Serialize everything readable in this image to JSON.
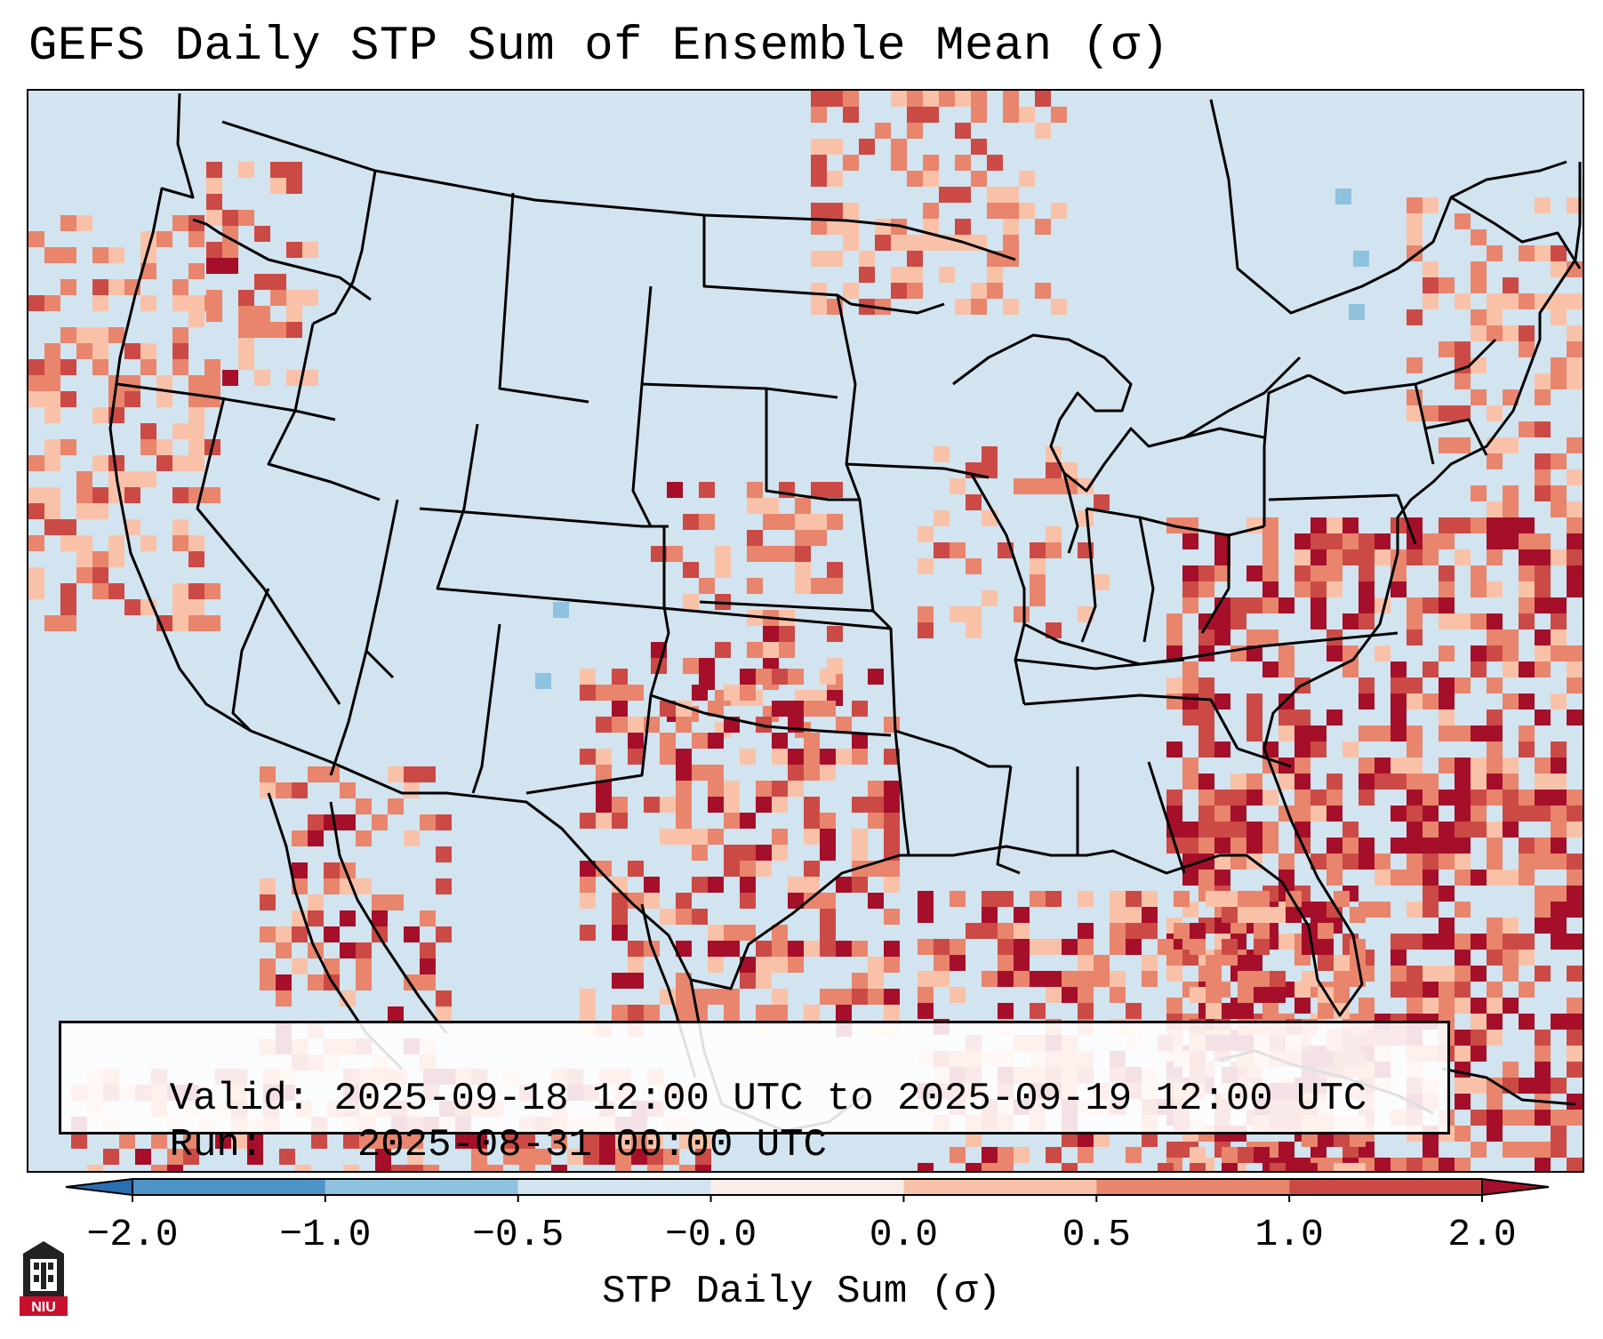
{
  "title": "GEFS Daily STP Sum of Ensemble Mean (σ)",
  "info": {
    "valid_label": "Valid:",
    "valid_value": "2025-09-18 12:00 UTC to 2025-09-19 12:00 UTC",
    "run_label": "Run:",
    "run_value": "2025-08-31 00:00 UTC"
  },
  "colorbar": {
    "label": "STP Daily Sum (σ)",
    "ticks": [
      "−2.0",
      "−1.0",
      "−0.5",
      "−0.0",
      "0.0",
      "0.5",
      "1.0",
      "2.0"
    ],
    "extend": "both",
    "colors": [
      "#2b6fb3",
      "#4d94c8",
      "#8fc2de",
      "#d2e4ef",
      "#f9ede9",
      "#f9c2a8",
      "#e8856c",
      "#cc4a45",
      "#a60f2a"
    ]
  },
  "map": {
    "projection": "Lambert conformal, contiguous United States",
    "background_color": "#d2e4ef",
    "border_color": "#000000"
  },
  "logo": {
    "text": "NIU",
    "icon": "niu-tower-logo-icon",
    "color": "#c8102e"
  }
}
